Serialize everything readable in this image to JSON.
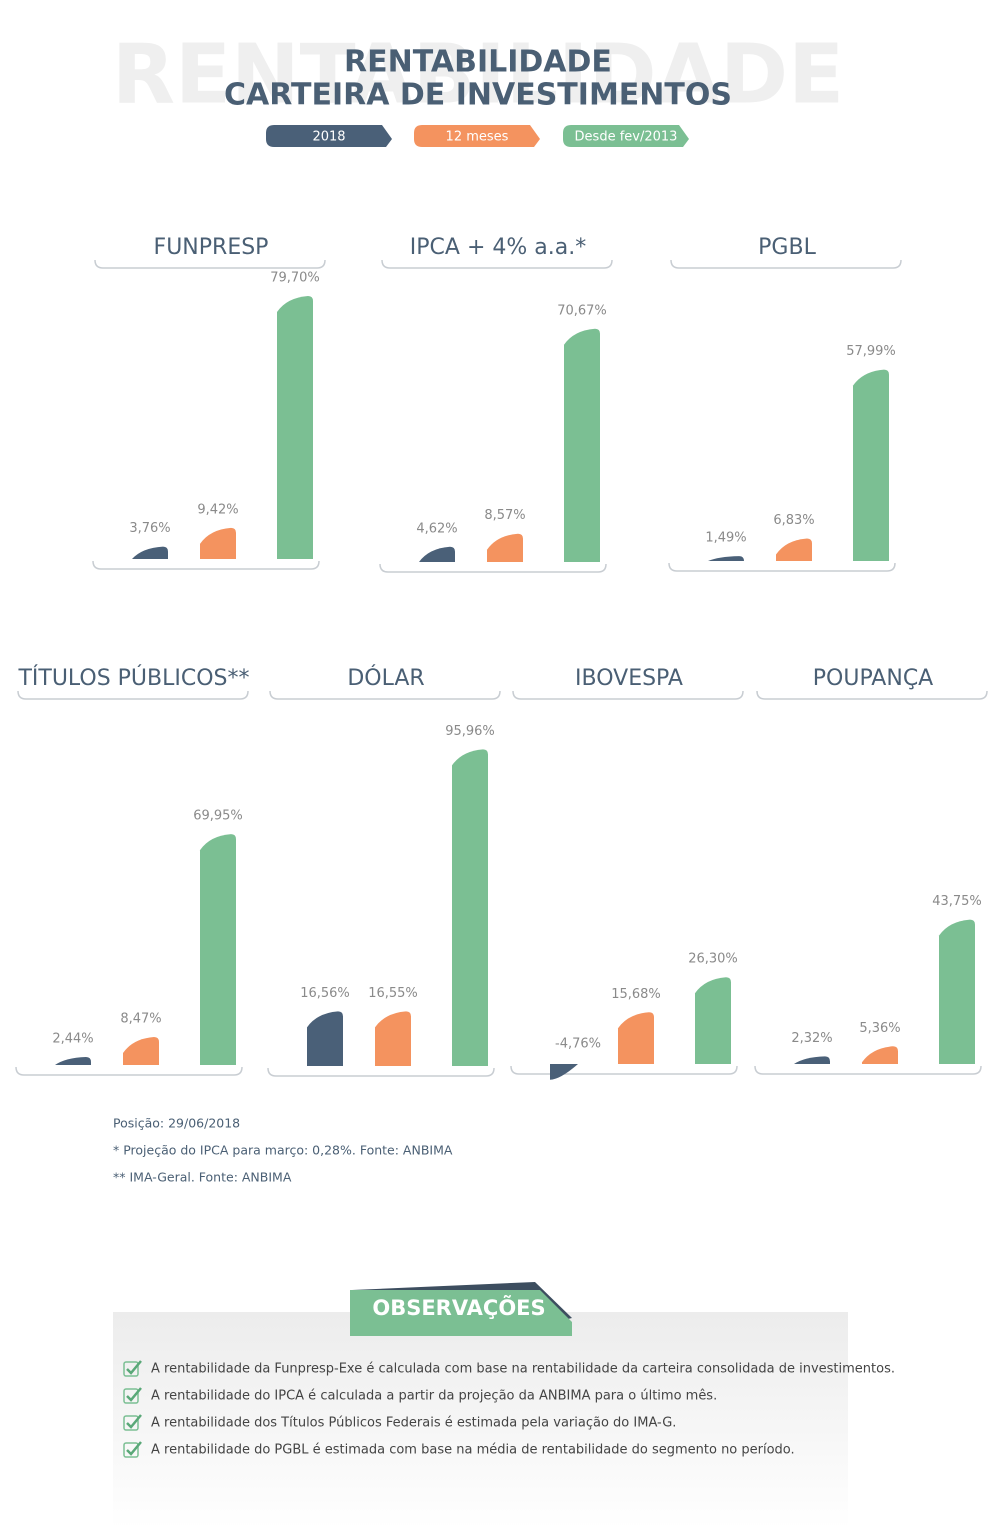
{
  "watermark": "RENTABILIDADE",
  "title": [
    "RENTABILIDADE",
    "CARTEIRA DE INVESTIMENTOS"
  ],
  "legend": [
    {
      "name": "2018",
      "color": "#4a6078"
    },
    {
      "name": "12 meses",
      "color": "#f4935f"
    },
    {
      "name": "Desde fev/2013",
      "color": "#7bbf93"
    }
  ],
  "chart_data": [
    {
      "type": "bar",
      "title": "FUNPRESP",
      "values": [
        3.76,
        9.42,
        79.7
      ],
      "value_labels": [
        "3,76%",
        "9,42%",
        "79,70%"
      ]
    },
    {
      "type": "bar",
      "title": "IPCA + 4% a.a.*",
      "values": [
        4.62,
        8.57,
        70.67
      ],
      "value_labels": [
        "4,62%",
        "8,57%",
        "70,67%"
      ]
    },
    {
      "type": "bar",
      "title": "PGBL",
      "values": [
        1.49,
        6.83,
        57.99
      ],
      "value_labels": [
        "1,49%",
        "6,83%",
        "57,99%"
      ]
    },
    {
      "type": "bar",
      "title": "TÍTULOS PÚBLICOS**",
      "values": [
        2.44,
        8.47,
        69.95
      ],
      "value_labels": [
        "2,44%",
        "8,47%",
        "69,95%"
      ]
    },
    {
      "type": "bar",
      "title": "DÓLAR",
      "values": [
        16.56,
        16.55,
        95.96
      ],
      "value_labels": [
        "16,56%",
        "16,55%",
        "95,96%"
      ]
    },
    {
      "type": "bar",
      "title": "IBOVESPA",
      "values": [
        -4.76,
        15.68,
        26.3
      ],
      "value_labels": [
        "-4,76%",
        "15,68%",
        "26,30%"
      ]
    },
    {
      "type": "bar",
      "title": "POUPANÇA",
      "values": [
        2.32,
        5.36,
        43.75
      ],
      "value_labels": [
        "2,32%",
        "5,36%",
        "43,75%"
      ]
    }
  ],
  "notes": [
    "Posição: 29/06/2018",
    "* Projeção do IPCA para março: 0,28%. Fonte: ANBIMA",
    "** IMA-Geral. Fonte: ANBIMA"
  ],
  "observations": {
    "title": "OBSERVAÇÕES",
    "items": [
      "A rentabilidade da Funpresp-Exe é calculada com base na rentabilidade da carteira consolidada de investimentos.",
      "A rentabilidade do IPCA é calculada a partir da projeção da ANBIMA para o último mês.",
      "A rentabilidade dos Títulos Públicos Federais é estimada pela variação do IMA-G.",
      "A rentabilidade do PGBL é estimada com base na média de rentabilidade do segmento no período."
    ]
  }
}
